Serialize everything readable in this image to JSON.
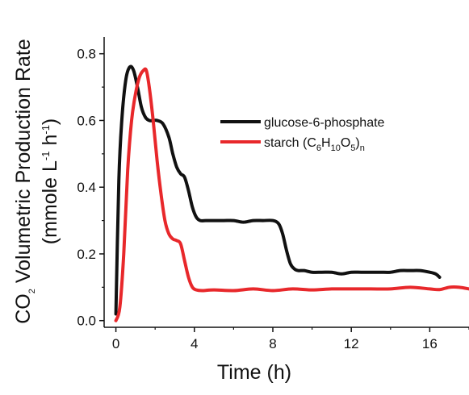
{
  "chart_data": {
    "type": "line",
    "title": "",
    "xlabel": "Time (h)",
    "ylabel": {
      "line1": {
        "pre": "CO",
        "sub": "2",
        "post": " Volumetric Production Rate"
      },
      "line2": {
        "p1": "(mmole L",
        "s1": "-1",
        "p2": " h",
        "s2": "-1",
        "p3": ")"
      }
    },
    "xlim": [
      -0.6,
      18
    ],
    "ylim": [
      -0.02,
      0.85
    ],
    "xticks": [
      0,
      4,
      8,
      12,
      16
    ],
    "xtick_labels": [
      "0",
      "4",
      "8",
      "12",
      "16"
    ],
    "yticks": [
      0.0,
      0.2,
      0.4,
      0.6,
      0.8
    ],
    "ytick_labels": [
      "0.0",
      "0.2",
      "0.4",
      "0.6",
      "0.8"
    ],
    "grid": false,
    "legend_position": "top-right",
    "series": [
      {
        "name": "glucose-6-phosphate",
        "color": "#111111",
        "x": [
          0,
          0.15,
          0.3,
          0.5,
          0.7,
          0.9,
          1.1,
          1.3,
          1.5,
          1.7,
          1.9,
          2.1,
          2.4,
          2.7,
          2.9,
          3.1,
          3.3,
          3.5,
          3.7,
          3.9,
          4.1,
          4.3,
          4.6,
          5,
          5.5,
          6,
          6.5,
          7,
          7.5,
          8,
          8.3,
          8.5,
          8.7,
          8.9,
          9.1,
          9.3,
          9.6,
          10,
          10.5,
          11,
          11.5,
          12,
          12.5,
          13,
          13.5,
          14,
          14.5,
          15,
          15.5,
          16,
          16.3,
          16.5
        ],
        "y": [
          0.02,
          0.42,
          0.6,
          0.72,
          0.76,
          0.75,
          0.7,
          0.64,
          0.61,
          0.6,
          0.6,
          0.6,
          0.59,
          0.55,
          0.5,
          0.46,
          0.44,
          0.43,
          0.39,
          0.34,
          0.31,
          0.3,
          0.3,
          0.3,
          0.3,
          0.3,
          0.295,
          0.3,
          0.3,
          0.3,
          0.29,
          0.26,
          0.21,
          0.17,
          0.155,
          0.15,
          0.15,
          0.145,
          0.145,
          0.145,
          0.14,
          0.145,
          0.145,
          0.145,
          0.145,
          0.145,
          0.15,
          0.15,
          0.15,
          0.145,
          0.14,
          0.13
        ]
      },
      {
        "name": "starch (C6H10O5)n",
        "color": "#e8282b",
        "x": [
          0,
          0.2,
          0.4,
          0.6,
          0.8,
          1.0,
          1.2,
          1.4,
          1.55,
          1.7,
          1.9,
          2.1,
          2.3,
          2.5,
          2.7,
          2.9,
          3.1,
          3.3,
          3.5,
          3.7,
          3.9,
          4.1,
          4.4,
          5,
          6,
          7,
          8,
          9,
          10,
          11,
          12,
          13,
          14,
          15,
          16,
          16.5,
          17,
          17.5,
          18
        ],
        "y": [
          0.0,
          0.04,
          0.2,
          0.45,
          0.6,
          0.68,
          0.73,
          0.75,
          0.75,
          0.7,
          0.6,
          0.48,
          0.38,
          0.3,
          0.26,
          0.245,
          0.24,
          0.23,
          0.18,
          0.13,
          0.1,
          0.092,
          0.09,
          0.092,
          0.09,
          0.095,
          0.09,
          0.095,
          0.092,
          0.095,
          0.095,
          0.095,
          0.095,
          0.1,
          0.095,
          0.093,
          0.1,
          0.1,
          0.095
        ]
      }
    ],
    "legend_labels": {
      "s0": "glucose-6-phosphate",
      "s1": {
        "pre": "starch (C",
        "a": "6",
        "b": "H",
        "c": "10",
        "d": "O",
        "e": "5",
        "f": ")",
        "g": "n"
      }
    }
  }
}
